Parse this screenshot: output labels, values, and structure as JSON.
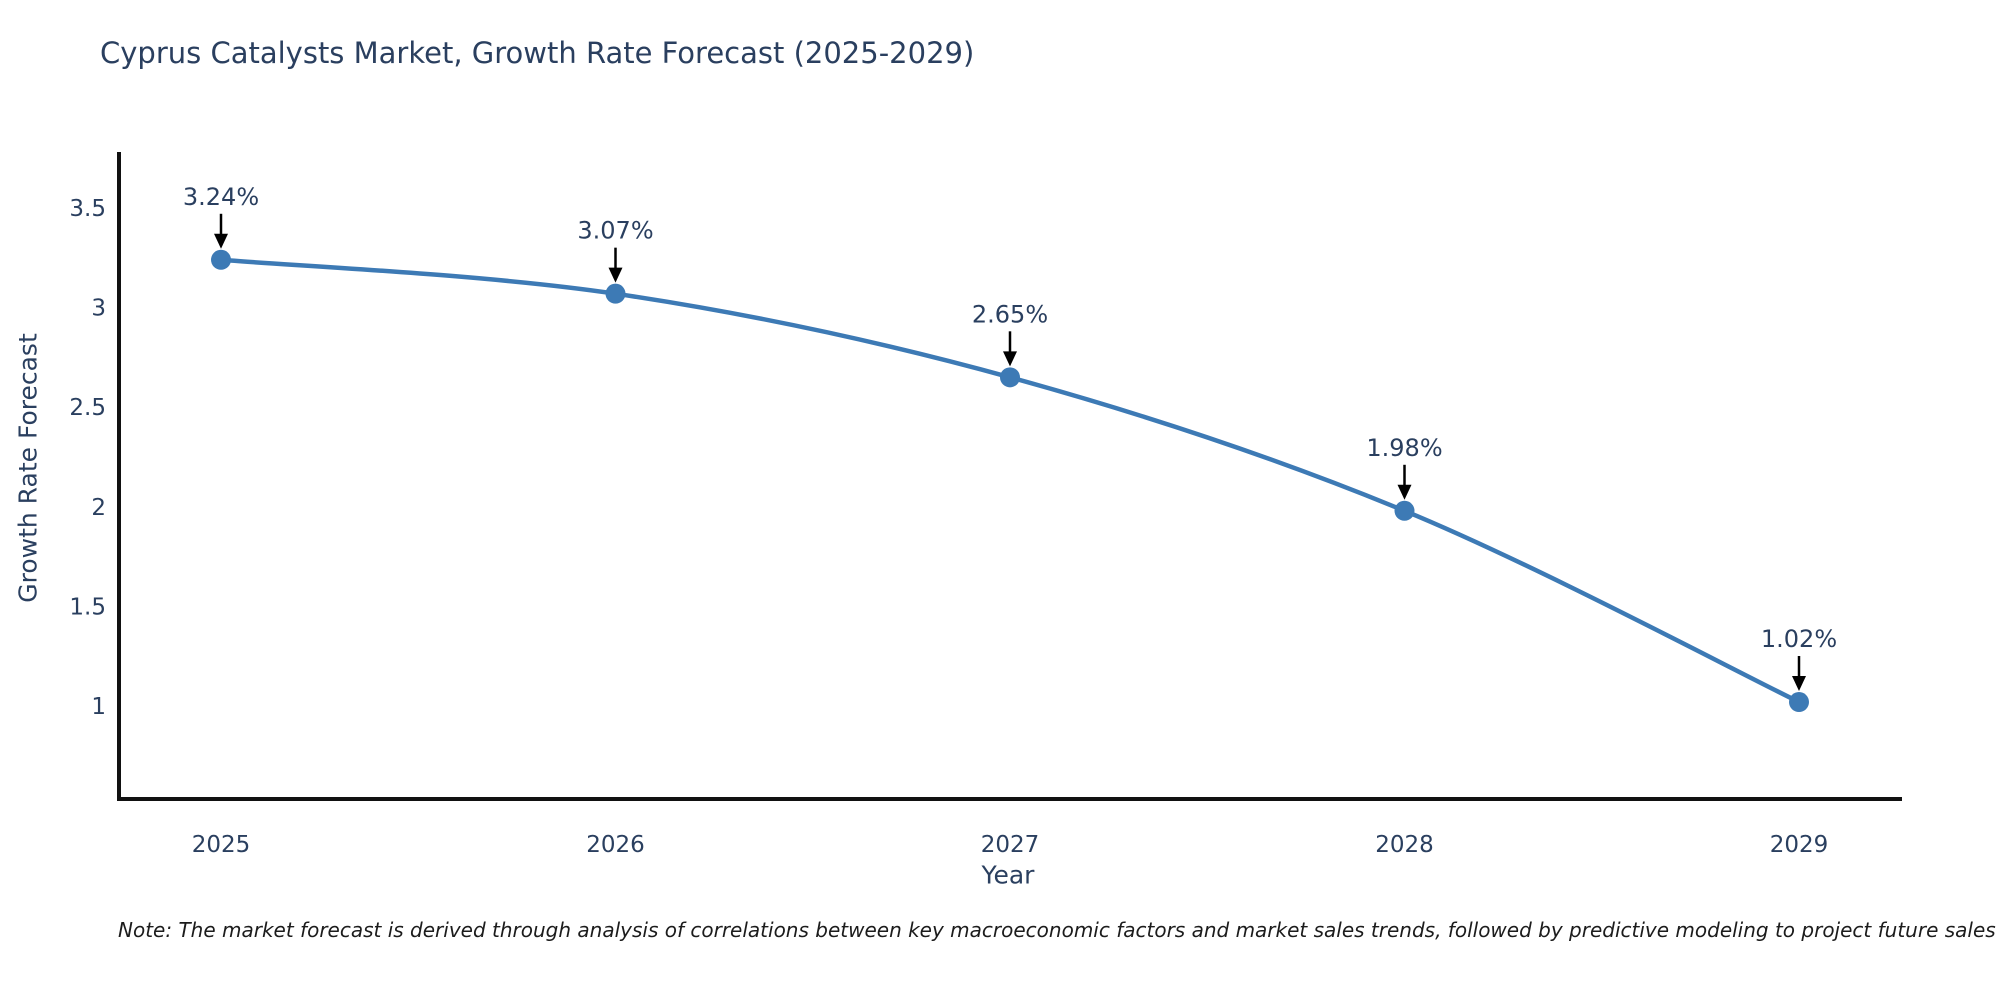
{
  "chart_data": {
    "type": "line",
    "title": "Cyprus Catalysts Market, Growth Rate Forecast (2025-2029)",
    "xlabel": "Year",
    "ylabel": "Growth Rate Forecast",
    "categories": [
      "2025",
      "2026",
      "2027",
      "2028",
      "2029"
    ],
    "series": [
      {
        "name": "Growth Rate Forecast",
        "values": [
          3.24,
          3.07,
          2.65,
          1.98,
          1.02
        ],
        "point_labels": [
          "3.24%",
          "3.07%",
          "2.65%",
          "1.98%",
          "1.02%"
        ]
      }
    ],
    "yticks": [
      1,
      1.5,
      2,
      2.5,
      3,
      3.5
    ],
    "ytick_labels": [
      "1",
      "1.5",
      "2",
      "2.5",
      "3",
      "3.5"
    ],
    "ylim": [
      0.53,
      3.78
    ],
    "grid": false,
    "legend_position": "none",
    "line_shape": "spline",
    "colors": {
      "line": "#3d7ab5",
      "marker": "#3d7ab5",
      "annotation_arrow": "#000000",
      "annotation_text": "#2a3f5f",
      "axis_line": "#111111",
      "tick_text": "#2a3f5f",
      "title_text": "#2a3f5f",
      "background": "#ffffff"
    }
  },
  "note": {
    "text": "Note: The market forecast is derived through analysis of correlations between key macroeconomic factors and market sales trends, followed by predictive modeling to project future sales"
  }
}
